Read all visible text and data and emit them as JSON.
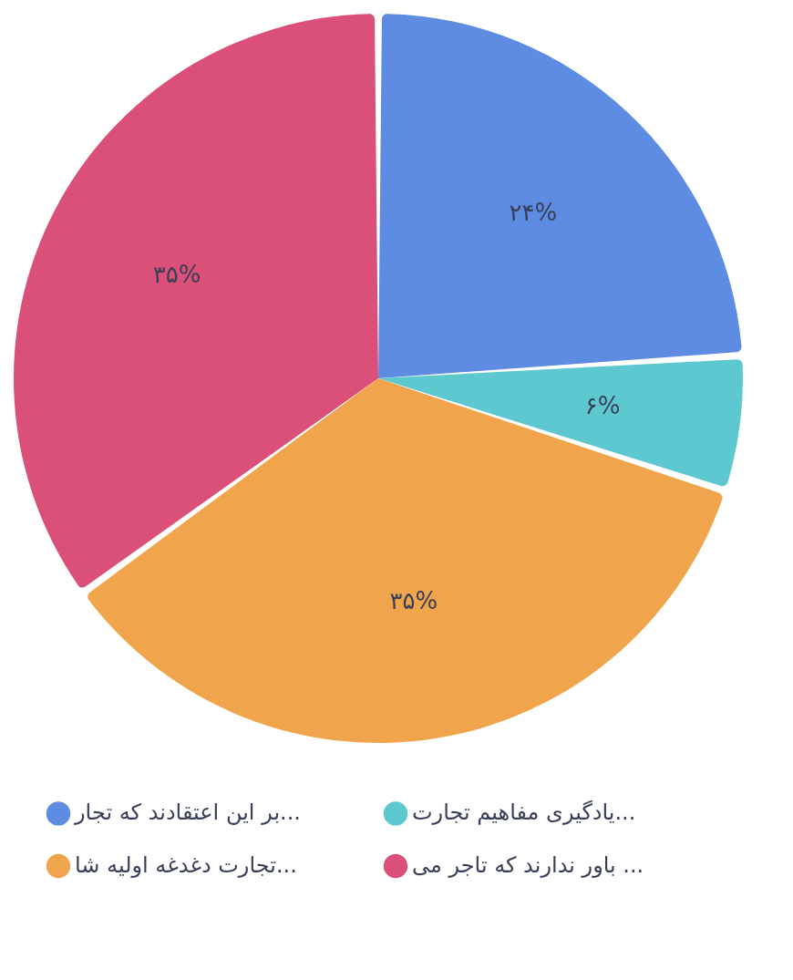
{
  "chart_data": {
    "type": "pie",
    "categories": [
      "بر این اعتقادند که تجار...",
      "یادگیری مفاهیم تجارت...",
      "تجارت دغدغه اولیه شا...",
      "باور ندارند که تاجر می ..."
    ],
    "values": [
      24,
      6,
      35,
      35
    ],
    "colors": [
      "#5e8ce2",
      "#5ec8d0",
      "#f0a54c",
      "#db5079"
    ],
    "value_labels": [
      "۲۴%",
      "۶%",
      "۳۵%",
      "۳۵%"
    ],
    "legend": "bottom"
  }
}
